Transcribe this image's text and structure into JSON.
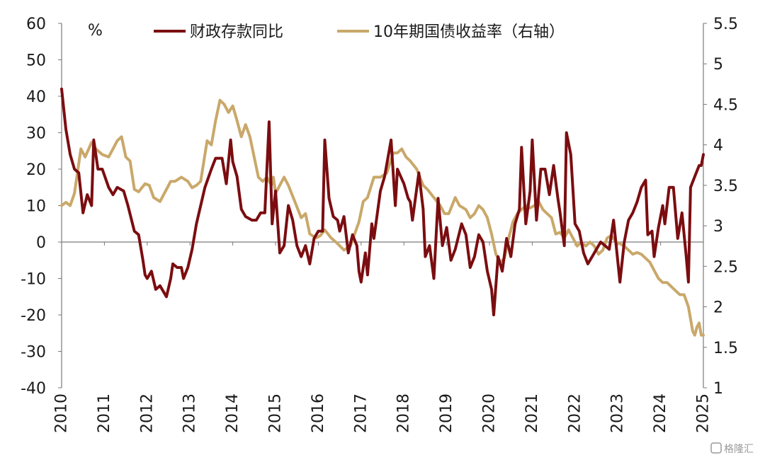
{
  "watermark": "格隆汇",
  "chart_data": {
    "type": "line",
    "unit_label": "%",
    "legend_placement": "top",
    "grid": false,
    "x_tick_labels": [
      "2010",
      "2011",
      "2012",
      "2013",
      "2014",
      "2015",
      "2016",
      "2017",
      "2018",
      "2019",
      "2020",
      "2021",
      "2022",
      "2023",
      "2024",
      "2025"
    ],
    "left_axis": {
      "ylim": [
        -40,
        60
      ],
      "ticks": [
        60,
        50,
        40,
        30,
        20,
        10,
        0,
        -10,
        -20,
        -30,
        -40
      ]
    },
    "right_axis": {
      "ylim": [
        1,
        5.5
      ],
      "ticks": [
        5.5,
        5,
        4.5,
        4,
        3.5,
        3,
        2.5,
        2,
        1.5,
        1
      ]
    },
    "series": [
      {
        "name": "财政存款同比",
        "axis": "left",
        "color": "#7b0d10",
        "points": [
          [
            2010.0,
            42
          ],
          [
            2010.1,
            31
          ],
          [
            2010.2,
            24
          ],
          [
            2010.3,
            20
          ],
          [
            2010.4,
            19
          ],
          [
            2010.5,
            8
          ],
          [
            2010.6,
            13
          ],
          [
            2010.7,
            10
          ],
          [
            2010.75,
            28
          ],
          [
            2010.85,
            20
          ],
          [
            2010.95,
            20
          ],
          [
            2011.1,
            15
          ],
          [
            2011.2,
            13
          ],
          [
            2011.3,
            15
          ],
          [
            2011.45,
            14
          ],
          [
            2011.55,
            10
          ],
          [
            2011.7,
            3
          ],
          [
            2011.8,
            2
          ],
          [
            2011.9,
            -5
          ],
          [
            2011.95,
            -9
          ],
          [
            2012.0,
            -10
          ],
          [
            2012.1,
            -8
          ],
          [
            2012.2,
            -13
          ],
          [
            2012.3,
            -12
          ],
          [
            2012.45,
            -15
          ],
          [
            2012.55,
            -10
          ],
          [
            2012.6,
            -6
          ],
          [
            2012.7,
            -7
          ],
          [
            2012.8,
            -7
          ],
          [
            2012.85,
            -10
          ],
          [
            2012.95,
            -7
          ],
          [
            2013.05,
            -2
          ],
          [
            2013.15,
            5
          ],
          [
            2013.25,
            10
          ],
          [
            2013.35,
            15
          ],
          [
            2013.5,
            20
          ],
          [
            2013.6,
            23
          ],
          [
            2013.75,
            23
          ],
          [
            2013.85,
            16
          ],
          [
            2013.95,
            28
          ],
          [
            2014.0,
            22
          ],
          [
            2014.1,
            18
          ],
          [
            2014.2,
            9
          ],
          [
            2014.3,
            7
          ],
          [
            2014.45,
            6
          ],
          [
            2014.55,
            6
          ],
          [
            2014.65,
            8
          ],
          [
            2014.75,
            8
          ],
          [
            2014.85,
            33
          ],
          [
            2014.92,
            5
          ],
          [
            2015.0,
            14
          ],
          [
            2015.1,
            -3
          ],
          [
            2015.2,
            -1
          ],
          [
            2015.3,
            10
          ],
          [
            2015.4,
            6
          ],
          [
            2015.5,
            -1
          ],
          [
            2015.6,
            -4
          ],
          [
            2015.7,
            -1
          ],
          [
            2015.8,
            -6
          ],
          [
            2015.9,
            1
          ],
          [
            2016.0,
            3
          ],
          [
            2016.1,
            3
          ],
          [
            2016.15,
            28
          ],
          [
            2016.25,
            12
          ],
          [
            2016.35,
            7
          ],
          [
            2016.45,
            6
          ],
          [
            2016.5,
            3
          ],
          [
            2016.6,
            7
          ],
          [
            2016.7,
            -3
          ],
          [
            2016.8,
            2
          ],
          [
            2016.9,
            -1
          ],
          [
            2016.95,
            -8
          ],
          [
            2017.0,
            -11
          ],
          [
            2017.1,
            -3
          ],
          [
            2017.15,
            -9
          ],
          [
            2017.25,
            5
          ],
          [
            2017.3,
            1
          ],
          [
            2017.45,
            14
          ],
          [
            2017.55,
            18
          ],
          [
            2017.7,
            28
          ],
          [
            2017.8,
            10
          ],
          [
            2017.85,
            20
          ],
          [
            2018.0,
            16
          ],
          [
            2018.1,
            12
          ],
          [
            2018.15,
            11
          ],
          [
            2018.2,
            6
          ],
          [
            2018.35,
            19
          ],
          [
            2018.45,
            9
          ],
          [
            2018.5,
            -4
          ],
          [
            2018.6,
            -1
          ],
          [
            2018.7,
            -10
          ],
          [
            2018.8,
            12
          ],
          [
            2018.9,
            -1
          ],
          [
            2019.0,
            4
          ],
          [
            2019.1,
            -5
          ],
          [
            2019.2,
            -2
          ],
          [
            2019.35,
            5
          ],
          [
            2019.45,
            2
          ],
          [
            2019.55,
            -7
          ],
          [
            2019.65,
            -4
          ],
          [
            2019.75,
            2
          ],
          [
            2019.85,
            0
          ],
          [
            2019.95,
            -8
          ],
          [
            2020.05,
            -13
          ],
          [
            2020.1,
            -20
          ],
          [
            2020.2,
            -4
          ],
          [
            2020.3,
            -8
          ],
          [
            2020.4,
            1
          ],
          [
            2020.5,
            -4
          ],
          [
            2020.6,
            5
          ],
          [
            2020.7,
            9
          ],
          [
            2020.75,
            26
          ],
          [
            2020.85,
            5
          ],
          [
            2020.95,
            14
          ],
          [
            2021.0,
            28
          ],
          [
            2021.1,
            6
          ],
          [
            2021.2,
            20
          ],
          [
            2021.3,
            20
          ],
          [
            2021.4,
            13
          ],
          [
            2021.5,
            21
          ],
          [
            2021.6,
            12
          ],
          [
            2021.65,
            8
          ],
          [
            2021.75,
            -1
          ],
          [
            2021.8,
            30
          ],
          [
            2021.9,
            24
          ],
          [
            2022.0,
            5
          ],
          [
            2022.1,
            3
          ],
          [
            2022.2,
            -3
          ],
          [
            2022.3,
            -6
          ],
          [
            2022.4,
            -4
          ],
          [
            2022.5,
            -2
          ],
          [
            2022.6,
            0
          ],
          [
            2022.7,
            -1
          ],
          [
            2022.8,
            -2
          ],
          [
            2022.9,
            6
          ],
          [
            2023.05,
            -11
          ],
          [
            2023.15,
            0
          ],
          [
            2023.25,
            6
          ],
          [
            2023.35,
            8
          ],
          [
            2023.45,
            11
          ],
          [
            2023.55,
            15
          ],
          [
            2023.65,
            17
          ],
          [
            2023.7,
            2
          ],
          [
            2023.8,
            3
          ],
          [
            2023.85,
            -4
          ],
          [
            2023.95,
            4
          ],
          [
            2024.05,
            10
          ],
          [
            2024.1,
            5
          ],
          [
            2024.2,
            15
          ],
          [
            2024.3,
            15
          ],
          [
            2024.4,
            1
          ],
          [
            2024.5,
            8
          ],
          [
            2024.6,
            -4
          ],
          [
            2024.65,
            -11
          ],
          [
            2024.7,
            15
          ],
          [
            2024.8,
            18
          ],
          [
            2024.9,
            21
          ],
          [
            2024.95,
            21
          ],
          [
            2025.0,
            24
          ]
        ]
      },
      {
        "name": "10年期国债收益率（右轴）",
        "axis": "right",
        "color": "#c9a86a",
        "points": [
          [
            2010.0,
            3.25
          ],
          [
            2010.1,
            3.29
          ],
          [
            2010.2,
            3.25
          ],
          [
            2010.3,
            3.4
          ],
          [
            2010.45,
            3.95
          ],
          [
            2010.55,
            3.85
          ],
          [
            2010.7,
            4.03
          ],
          [
            2010.8,
            3.95
          ],
          [
            2010.95,
            3.88
          ],
          [
            2011.1,
            3.85
          ],
          [
            2011.2,
            3.95
          ],
          [
            2011.3,
            4.05
          ],
          [
            2011.4,
            4.1
          ],
          [
            2011.5,
            3.85
          ],
          [
            2011.6,
            3.8
          ],
          [
            2011.7,
            3.45
          ],
          [
            2011.8,
            3.42
          ],
          [
            2011.95,
            3.52
          ],
          [
            2012.05,
            3.5
          ],
          [
            2012.15,
            3.35
          ],
          [
            2012.3,
            3.3
          ],
          [
            2012.45,
            3.45
          ],
          [
            2012.55,
            3.55
          ],
          [
            2012.65,
            3.55
          ],
          [
            2012.8,
            3.6
          ],
          [
            2012.95,
            3.55
          ],
          [
            2013.05,
            3.47
          ],
          [
            2013.15,
            3.5
          ],
          [
            2013.25,
            3.55
          ],
          [
            2013.4,
            4.05
          ],
          [
            2013.5,
            4.0
          ],
          [
            2013.6,
            4.3
          ],
          [
            2013.7,
            4.55
          ],
          [
            2013.8,
            4.5
          ],
          [
            2013.9,
            4.4
          ],
          [
            2014.0,
            4.48
          ],
          [
            2014.1,
            4.3
          ],
          [
            2014.2,
            4.1
          ],
          [
            2014.3,
            4.25
          ],
          [
            2014.4,
            4.1
          ],
          [
            2014.5,
            3.85
          ],
          [
            2014.6,
            3.6
          ],
          [
            2014.7,
            3.55
          ],
          [
            2014.8,
            3.6
          ],
          [
            2014.9,
            3.5
          ],
          [
            2014.95,
            3.6
          ],
          [
            2015.0,
            3.4
          ],
          [
            2015.1,
            3.5
          ],
          [
            2015.2,
            3.6
          ],
          [
            2015.3,
            3.5
          ],
          [
            2015.45,
            3.3
          ],
          [
            2015.6,
            3.1
          ],
          [
            2015.7,
            3.15
          ],
          [
            2015.8,
            2.9
          ],
          [
            2015.95,
            2.85
          ],
          [
            2016.05,
            2.88
          ],
          [
            2016.15,
            2.95
          ],
          [
            2016.3,
            2.85
          ],
          [
            2016.45,
            2.78
          ],
          [
            2016.6,
            2.7
          ],
          [
            2016.75,
            2.75
          ],
          [
            2016.85,
            2.9
          ],
          [
            2016.95,
            3.05
          ],
          [
            2017.05,
            3.3
          ],
          [
            2017.15,
            3.35
          ],
          [
            2017.3,
            3.6
          ],
          [
            2017.45,
            3.6
          ],
          [
            2017.6,
            3.65
          ],
          [
            2017.75,
            3.9
          ],
          [
            2017.85,
            3.9
          ],
          [
            2017.95,
            3.95
          ],
          [
            2018.05,
            3.85
          ],
          [
            2018.15,
            3.8
          ],
          [
            2018.3,
            3.7
          ],
          [
            2018.45,
            3.5
          ],
          [
            2018.55,
            3.45
          ],
          [
            2018.7,
            3.35
          ],
          [
            2018.85,
            3.25
          ],
          [
            2018.95,
            3.15
          ],
          [
            2019.05,
            3.15
          ],
          [
            2019.2,
            3.35
          ],
          [
            2019.3,
            3.25
          ],
          [
            2019.45,
            3.2
          ],
          [
            2019.55,
            3.1
          ],
          [
            2019.65,
            3.15
          ],
          [
            2019.75,
            3.25
          ],
          [
            2019.85,
            3.2
          ],
          [
            2019.95,
            3.1
          ],
          [
            2020.05,
            2.9
          ],
          [
            2020.15,
            2.65
          ],
          [
            2020.25,
            2.55
          ],
          [
            2020.35,
            2.6
          ],
          [
            2020.45,
            2.85
          ],
          [
            2020.55,
            3.05
          ],
          [
            2020.65,
            3.15
          ],
          [
            2020.75,
            3.2
          ],
          [
            2020.85,
            3.25
          ],
          [
            2020.95,
            3.22
          ],
          [
            2021.05,
            3.25
          ],
          [
            2021.15,
            3.3
          ],
          [
            2021.25,
            3.2
          ],
          [
            2021.35,
            3.15
          ],
          [
            2021.45,
            3.1
          ],
          [
            2021.55,
            2.9
          ],
          [
            2021.65,
            2.92
          ],
          [
            2021.75,
            2.85
          ],
          [
            2021.85,
            2.95
          ],
          [
            2021.95,
            2.85
          ],
          [
            2022.05,
            2.75
          ],
          [
            2022.15,
            2.8
          ],
          [
            2022.25,
            2.75
          ],
          [
            2022.35,
            2.8
          ],
          [
            2022.45,
            2.75
          ],
          [
            2022.55,
            2.65
          ],
          [
            2022.65,
            2.7
          ],
          [
            2022.75,
            2.85
          ],
          [
            2022.85,
            2.88
          ],
          [
            2022.95,
            2.8
          ],
          [
            2023.05,
            2.78
          ],
          [
            2023.15,
            2.75
          ],
          [
            2023.25,
            2.7
          ],
          [
            2023.35,
            2.65
          ],
          [
            2023.45,
            2.67
          ],
          [
            2023.55,
            2.65
          ],
          [
            2023.65,
            2.6
          ],
          [
            2023.75,
            2.55
          ],
          [
            2023.85,
            2.45
          ],
          [
            2023.95,
            2.35
          ],
          [
            2024.05,
            2.3
          ],
          [
            2024.15,
            2.3
          ],
          [
            2024.25,
            2.25
          ],
          [
            2024.35,
            2.2
          ],
          [
            2024.45,
            2.15
          ],
          [
            2024.55,
            2.15
          ],
          [
            2024.65,
            2.0
          ],
          [
            2024.75,
            1.7
          ],
          [
            2024.8,
            1.65
          ],
          [
            2024.85,
            1.75
          ],
          [
            2024.9,
            1.8
          ],
          [
            2024.95,
            1.65
          ],
          [
            2025.0,
            1.65
          ]
        ]
      }
    ]
  }
}
